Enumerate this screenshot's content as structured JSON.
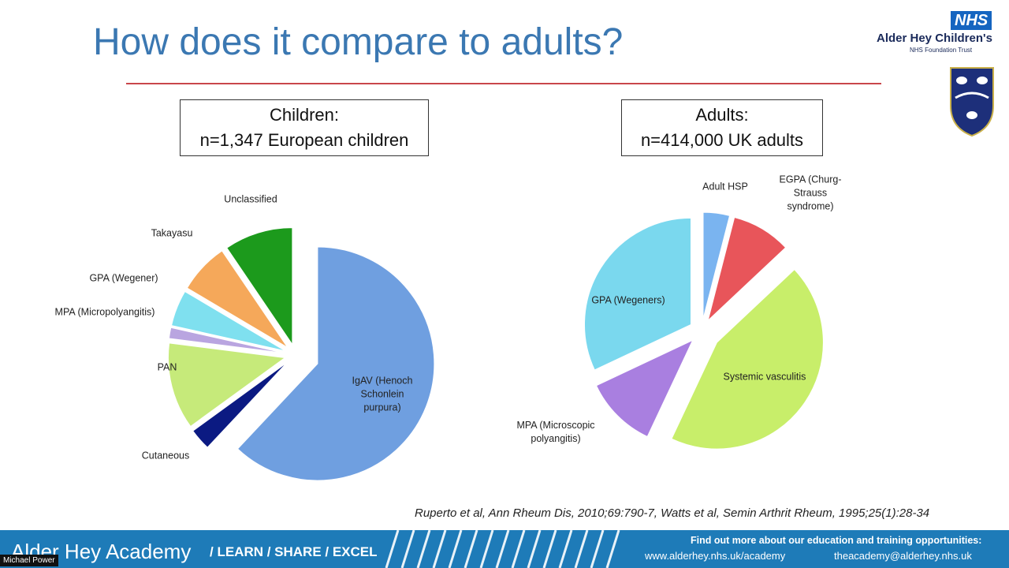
{
  "header": {
    "title": "How does it compare to adults?",
    "logo": "NHS",
    "trust_name": "Alder Hey Children's",
    "trust_sub": "NHS Foundation Trust"
  },
  "boxes": [
    [
      "Children:",
      "n=1,347 European children"
    ],
    [
      "Adults:",
      "n=414,000 UK adults"
    ]
  ],
  "chart_data": [
    {
      "type": "pie",
      "categories": [
        "IgAV (Henoch Schonlein purpura)",
        "Cutaneous",
        "PAN",
        "MPA (Micropolyangitis)",
        "GPA (Wegener)",
        "Takayasu",
        "Unclassified"
      ],
      "values": [
        62,
        3,
        12,
        1.5,
        5,
        7,
        9.5
      ],
      "colors": [
        "#6f9fe0",
        "#0b1a82",
        "#c6ea7a",
        "#b9a5e0",
        "#7fe0ef",
        "#f5a85a",
        "#1c9a1c"
      ]
    },
    {
      "type": "pie",
      "categories": [
        "Adult HSP",
        "EGPA (Churg-Strauss syndrome)",
        "Systemic vasculitis",
        "MPA (Microscopic polyangitis)",
        "GPA (Wegeners)"
      ],
      "values": [
        4,
        9,
        44,
        11,
        32
      ],
      "colors": [
        "#7ab4f0",
        "#e8555a",
        "#c8ee6a",
        "#a97fe0",
        "#7ad8ee"
      ]
    }
  ],
  "citation": "Ruperto et al, Ann Rheum Dis, 2010;69:790-7, Watts et al, Semin Arthrit Rheum, 1995;25(1):28-34",
  "footer": {
    "brand": "Alder Hey Academy",
    "motto": "/ LEARN / SHARE / EXCEL",
    "info": "Find out more about our education and training opportunities:",
    "web": "www.alderhey.nhs.uk/academy",
    "email": "theacademy@alderhey.nhs.uk"
  },
  "participant": "Michael Power"
}
